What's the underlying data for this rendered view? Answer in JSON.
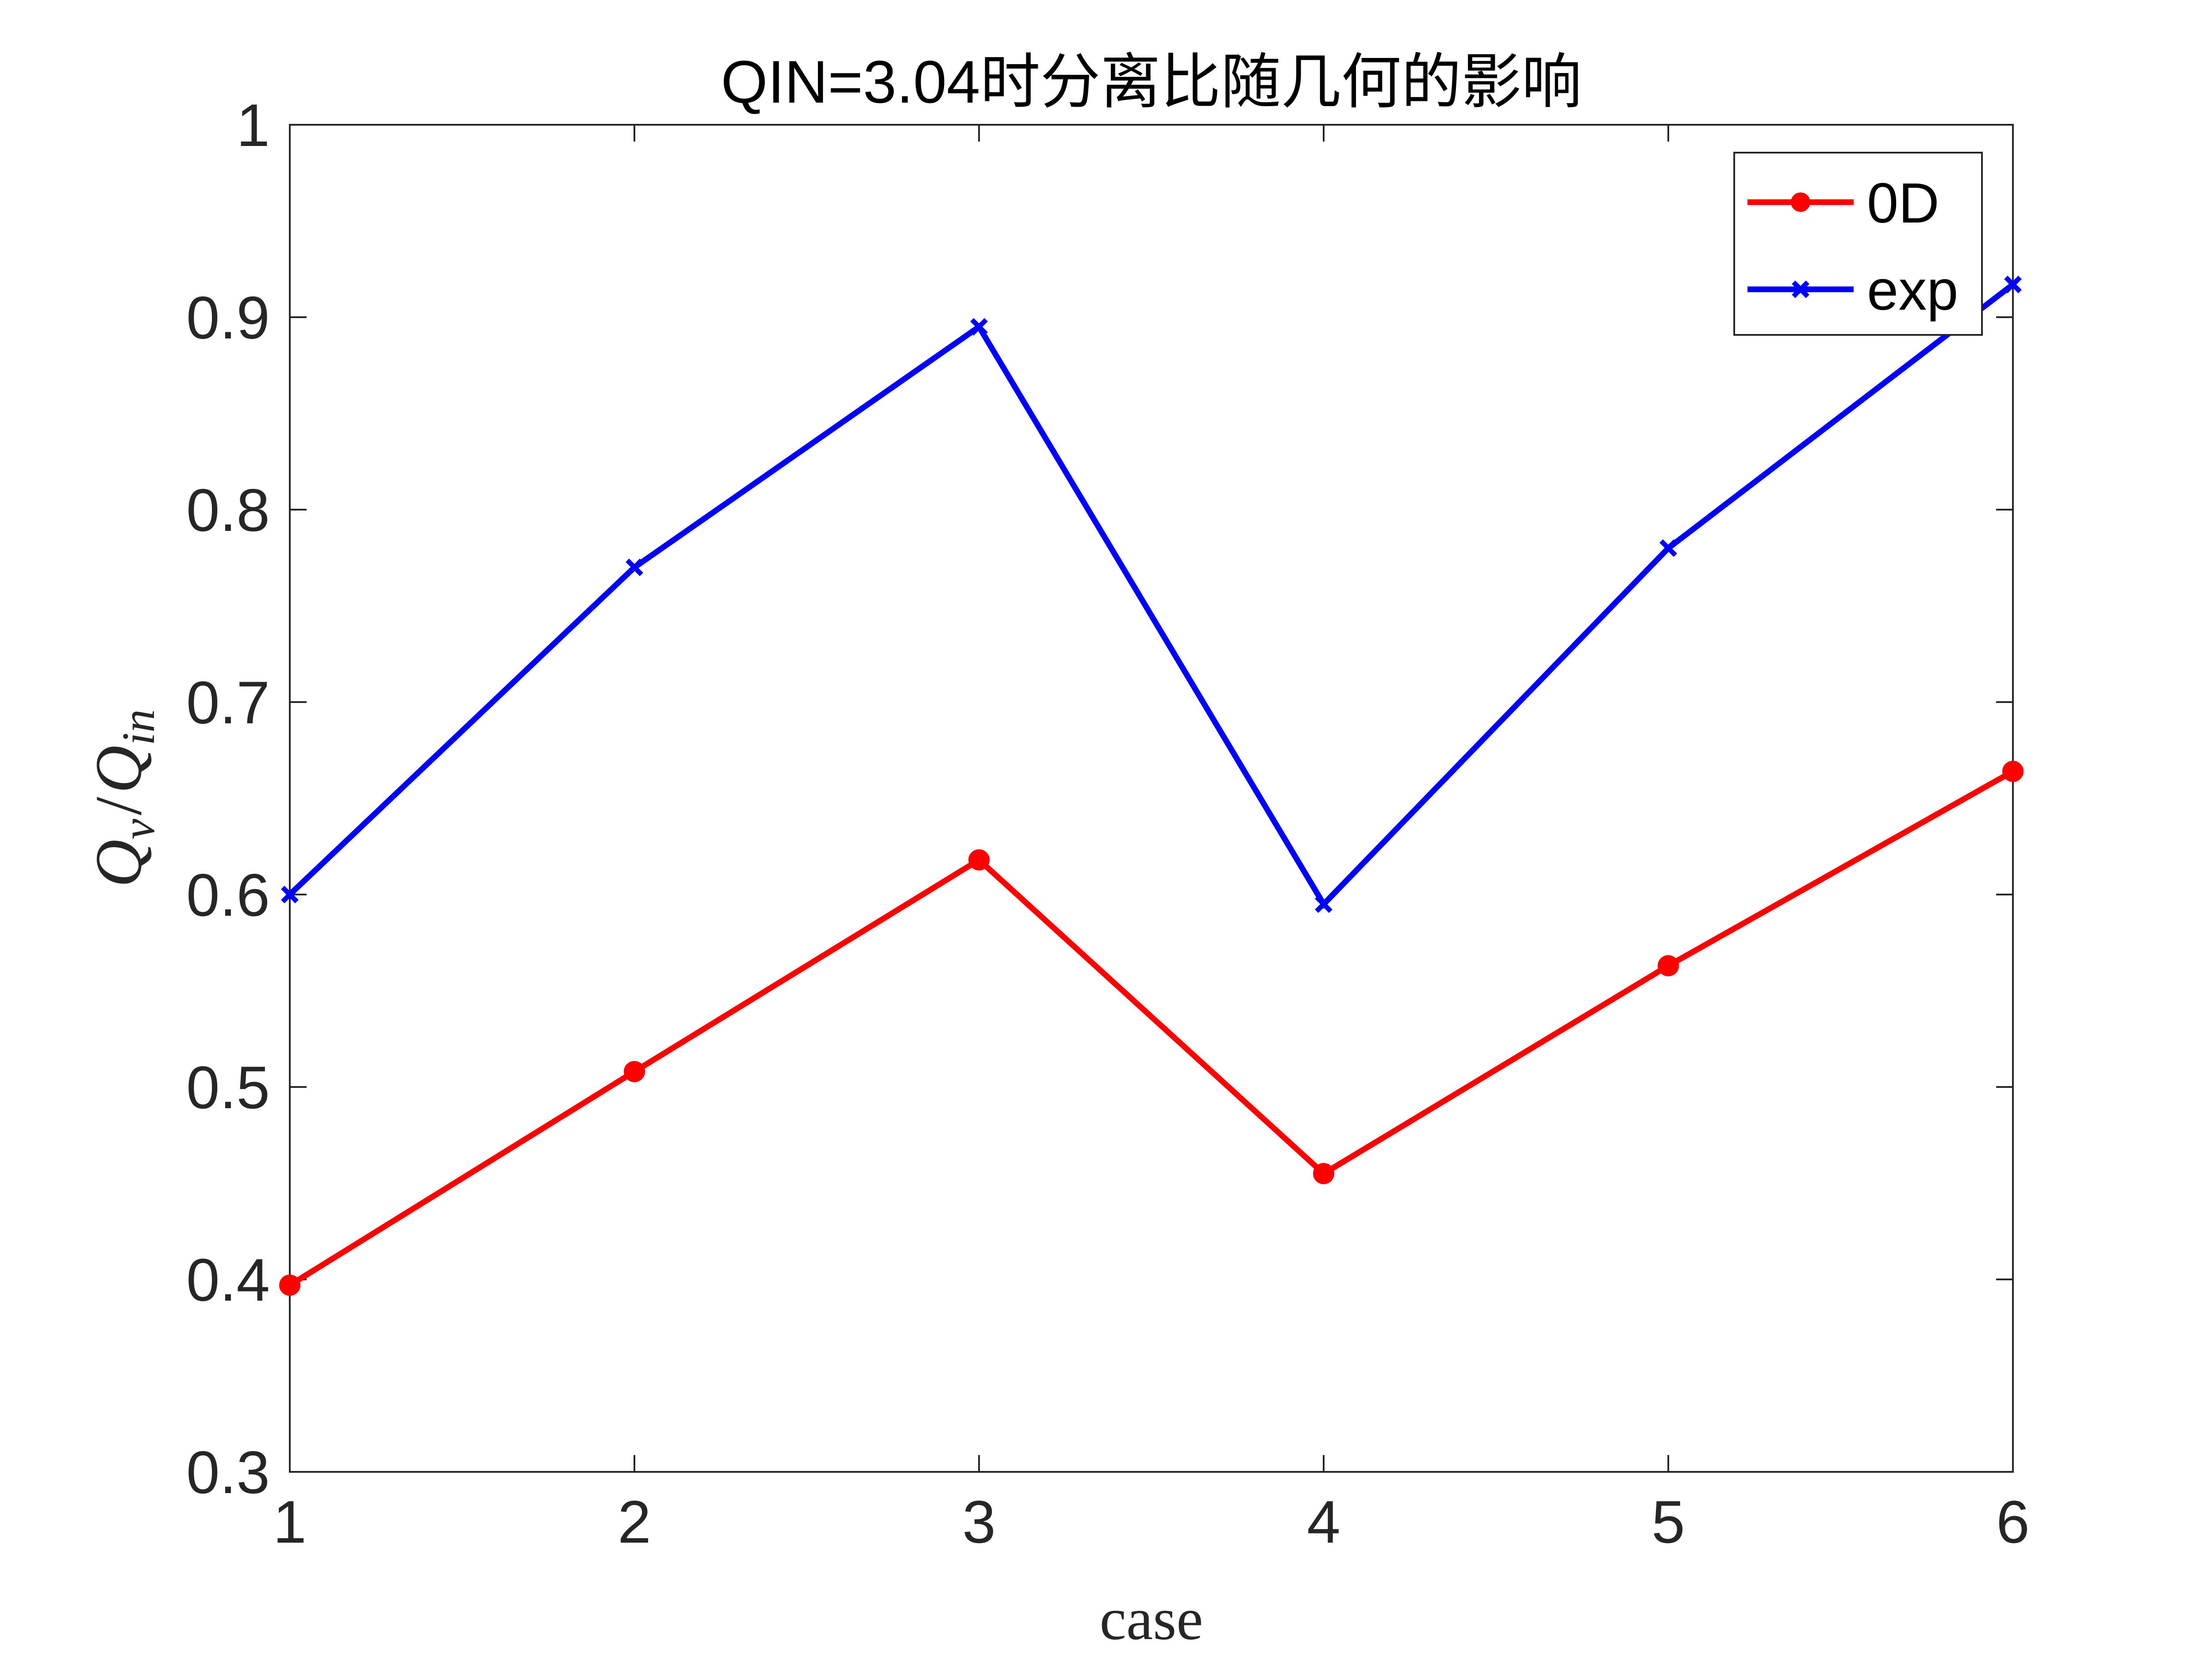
{
  "chart_data": {
    "type": "line",
    "title": "QIN=3.04时分离比随几何的影响",
    "xlabel": "case",
    "ylabel": "Q_v/Q_in",
    "x": [
      1,
      2,
      3,
      4,
      5,
      6
    ],
    "xticks": [
      "1",
      "2",
      "3",
      "4",
      "5",
      "6"
    ],
    "yticks": [
      "0.3",
      "0.4",
      "0.5",
      "0.6",
      "0.7",
      "0.8",
      "0.9",
      "1"
    ],
    "xlim": [
      1,
      6
    ],
    "ylim": [
      0.3,
      1.0
    ],
    "grid": false,
    "legend_position": "top-right",
    "series": [
      {
        "name": "0D",
        "color": "#FF0000",
        "marker": "filled-circle",
        "values": [
          0.397,
          0.508,
          0.618,
          0.455,
          0.563,
          0.664
        ]
      },
      {
        "name": "exp",
        "color": "#0000FF",
        "marker": "x",
        "values": [
          0.6,
          0.77,
          0.895,
          0.595,
          0.78,
          0.917
        ]
      }
    ]
  }
}
